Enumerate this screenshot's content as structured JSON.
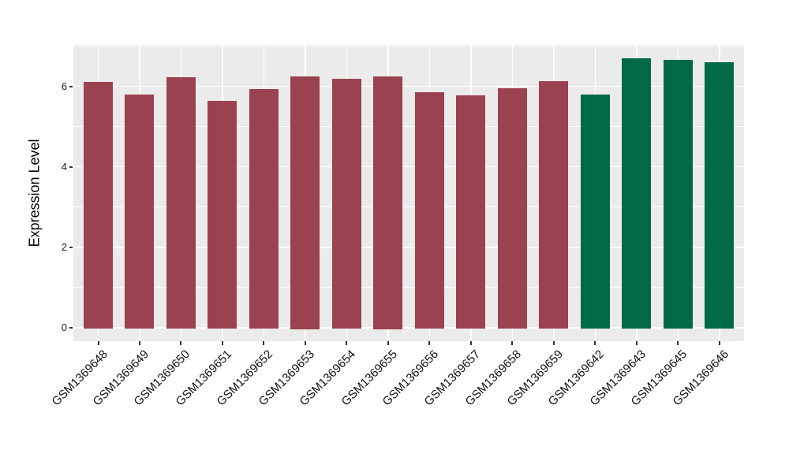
{
  "chart_data": {
    "type": "bar",
    "title": "",
    "xlabel": "",
    "ylabel": "Expression Level",
    "categories": [
      "GSM1369648",
      "GSM1369649",
      "GSM1369650",
      "GSM1369651",
      "GSM1369652",
      "GSM1369653",
      "GSM1369654",
      "GSM1369655",
      "GSM1369656",
      "GSM1369657",
      "GSM1369658",
      "GSM1369659",
      "GSM1369642",
      "GSM1369643",
      "GSM1369645",
      "GSM1369646"
    ],
    "values": [
      6.11,
      5.8,
      6.23,
      5.64,
      5.93,
      6.25,
      6.19,
      6.25,
      5.85,
      5.77,
      5.95,
      6.12,
      5.8,
      6.7,
      6.65,
      6.59
    ],
    "bar_colors": [
      "#9B4250",
      "#9B4250",
      "#9B4250",
      "#9B4250",
      "#9B4250",
      "#9B4250",
      "#9B4250",
      "#9B4250",
      "#9B4250",
      "#9B4250",
      "#9B4250",
      "#9B4250",
      "#006946",
      "#006946",
      "#006946",
      "#006946"
    ],
    "y_tick_labels": [
      "0",
      "2",
      "4",
      "6"
    ],
    "y_tick_values": [
      0,
      2,
      4,
      6
    ],
    "y_minor_gridlines": [
      1,
      3,
      5,
      7
    ],
    "ylim": [
      0,
      7
    ],
    "grid": true,
    "legend": "none",
    "panel_background": "#EBEBEB",
    "gridline_color": "#FFFFFF",
    "x_label_rotation_deg": 45
  }
}
